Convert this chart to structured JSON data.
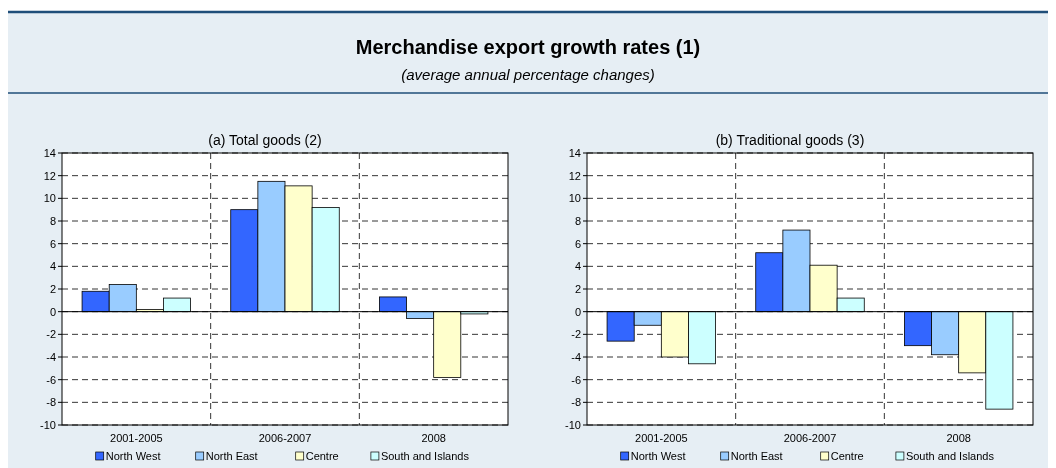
{
  "chart_data": [
    {
      "type": "bar",
      "title": "(a) Total goods (2)",
      "annotations": [
        "Merchandise export growth rates (1)",
        "(average annual percentage changes)"
      ],
      "categories": [
        "2001-2005",
        "2006-2007",
        "2008"
      ],
      "series": [
        {
          "name": "North West",
          "color": "#3366ff",
          "values": [
            1.8,
            9.0,
            1.3
          ]
        },
        {
          "name": "North East",
          "color": "#99ccff",
          "values": [
            2.4,
            11.5,
            -0.6
          ]
        },
        {
          "name": "Centre",
          "color": "#ffffcc",
          "values": [
            0.2,
            11.1,
            -5.8
          ]
        },
        {
          "name": "South and Islands",
          "color": "#ccffff",
          "values": [
            1.2,
            9.2,
            -0.2
          ]
        }
      ],
      "ylim": [
        -10,
        14
      ],
      "yticks": [
        -10,
        -8,
        -6,
        -4,
        -2,
        0,
        2,
        4,
        6,
        8,
        10,
        12,
        14
      ],
      "grid": true,
      "legend": "bottom"
    },
    {
      "type": "bar",
      "title": "(b) Traditional goods (3)",
      "categories": [
        "2001-2005",
        "2006-2007",
        "2008"
      ],
      "series": [
        {
          "name": "North West",
          "color": "#3366ff",
          "values": [
            -2.6,
            5.2,
            -3.0
          ]
        },
        {
          "name": "North East",
          "color": "#99ccff",
          "values": [
            -1.2,
            7.2,
            -3.8
          ]
        },
        {
          "name": "Centre",
          "color": "#ffffcc",
          "values": [
            -4.0,
            4.1,
            -5.4
          ]
        },
        {
          "name": "South and Islands",
          "color": "#ccffff",
          "values": [
            -4.6,
            1.2,
            -8.6
          ]
        }
      ],
      "ylim": [
        -10,
        14
      ],
      "yticks": [
        -10,
        -8,
        -6,
        -4,
        -2,
        0,
        2,
        4,
        6,
        8,
        10,
        12,
        14
      ],
      "grid": true,
      "legend": "bottom"
    }
  ]
}
